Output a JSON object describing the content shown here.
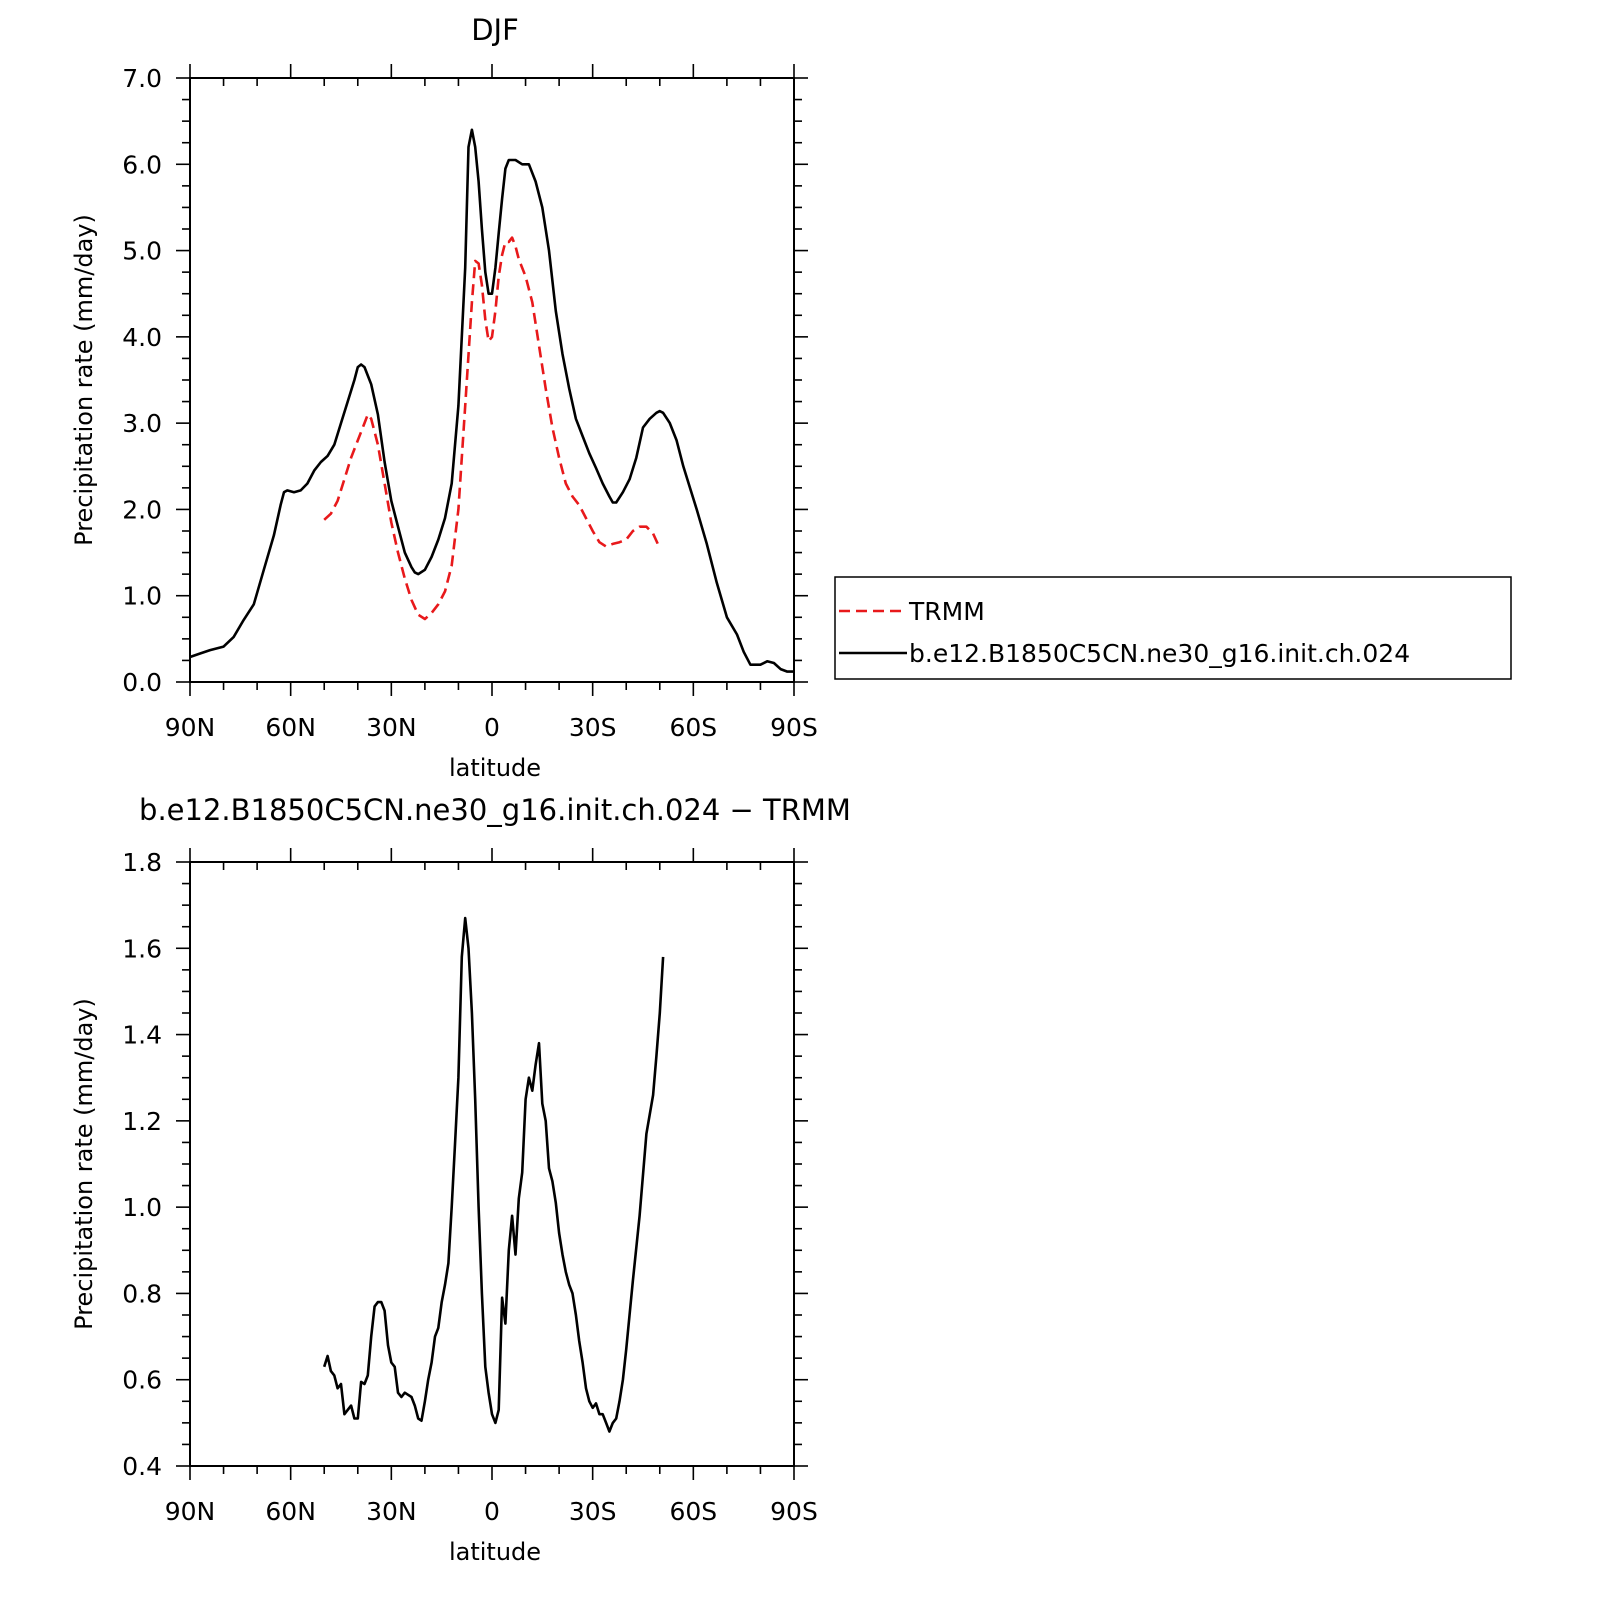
{
  "colors": {
    "trmm": "#e8191b",
    "model": "#000000",
    "axis": "#000000"
  },
  "chart_data": [
    {
      "type": "line",
      "title": "DJF",
      "xlabel": "latitude",
      "ylabel": "Precipitation rate (mm/day)",
      "xlim": [
        90,
        -90
      ],
      "ylim": [
        0,
        7
      ],
      "xticks": [
        {
          "v": 90,
          "label": "90N"
        },
        {
          "v": 60,
          "label": "60N"
        },
        {
          "v": 30,
          "label": "30N"
        },
        {
          "v": 0,
          "label": "0"
        },
        {
          "v": -30,
          "label": "30S"
        },
        {
          "v": -60,
          "label": "60S"
        },
        {
          "v": -90,
          "label": "90S"
        }
      ],
      "yticks": [
        {
          "v": 0,
          "label": "0.0"
        },
        {
          "v": 1,
          "label": "1.0"
        },
        {
          "v": 2,
          "label": "2.0"
        },
        {
          "v": 3,
          "label": "3.0"
        },
        {
          "v": 4,
          "label": "4.0"
        },
        {
          "v": 5,
          "label": "5.0"
        },
        {
          "v": 6,
          "label": "6.0"
        },
        {
          "v": 7,
          "label": "7.0"
        }
      ],
      "legend": {
        "position": "right",
        "entries": [
          "TRMM",
          "b.e12.B1850C5CN.ne30_g16.init.ch.024"
        ]
      },
      "series": [
        {
          "name": "TRMM",
          "style": "dashed",
          "points": [
            [
              50,
              1.88
            ],
            [
              48,
              1.95
            ],
            [
              46,
              2.1
            ],
            [
              44,
              2.35
            ],
            [
              42,
              2.6
            ],
            [
              40,
              2.8
            ],
            [
              38,
              3.0
            ],
            [
              37,
              3.1
            ],
            [
              36,
              3.05
            ],
            [
              34,
              2.75
            ],
            [
              32,
              2.3
            ],
            [
              30,
              1.85
            ],
            [
              28,
              1.5
            ],
            [
              26,
              1.2
            ],
            [
              24,
              0.95
            ],
            [
              22,
              0.78
            ],
            [
              20,
              0.73
            ],
            [
              18,
              0.8
            ],
            [
              16,
              0.9
            ],
            [
              14,
              1.05
            ],
            [
              12,
              1.35
            ],
            [
              10,
              2.0
            ],
            [
              8,
              3.2
            ],
            [
              6,
              4.4
            ],
            [
              5,
              4.88
            ],
            [
              4,
              4.85
            ],
            [
              3,
              4.6
            ],
            [
              2,
              4.2
            ],
            [
              1,
              3.95
            ],
            [
              0,
              4.0
            ],
            [
              -1,
              4.3
            ],
            [
              -2,
              4.7
            ],
            [
              -3,
              4.95
            ],
            [
              -4,
              5.1
            ],
            [
              -5,
              5.1
            ],
            [
              -6,
              5.15
            ],
            [
              -7,
              5.05
            ],
            [
              -8,
              4.9
            ],
            [
              -10,
              4.7
            ],
            [
              -12,
              4.4
            ],
            [
              -14,
              3.9
            ],
            [
              -16,
              3.4
            ],
            [
              -18,
              2.95
            ],
            [
              -20,
              2.6
            ],
            [
              -22,
              2.3
            ],
            [
              -24,
              2.15
            ],
            [
              -26,
              2.05
            ],
            [
              -28,
              1.9
            ],
            [
              -30,
              1.75
            ],
            [
              -32,
              1.62
            ],
            [
              -34,
              1.57
            ],
            [
              -36,
              1.6
            ],
            [
              -38,
              1.62
            ],
            [
              -40,
              1.65
            ],
            [
              -42,
              1.75
            ],
            [
              -44,
              1.8
            ],
            [
              -46,
              1.8
            ],
            [
              -48,
              1.72
            ],
            [
              -50,
              1.55
            ]
          ]
        },
        {
          "name": "b.e12.B1850C5CN.ne30_g16.init.ch.024",
          "style": "solid",
          "points": [
            [
              90,
              0.29
            ],
            [
              87,
              0.33
            ],
            [
              84,
              0.37
            ],
            [
              80,
              0.41
            ],
            [
              77,
              0.52
            ],
            [
              74,
              0.72
            ],
            [
              71,
              0.9
            ],
            [
              68,
              1.3
            ],
            [
              65,
              1.7
            ],
            [
              63,
              2.05
            ],
            [
              62,
              2.2
            ],
            [
              61,
              2.22
            ],
            [
              59,
              2.2
            ],
            [
              57,
              2.22
            ],
            [
              55,
              2.3
            ],
            [
              53,
              2.45
            ],
            [
              51,
              2.55
            ],
            [
              49,
              2.62
            ],
            [
              47,
              2.75
            ],
            [
              45,
              3.0
            ],
            [
              43,
              3.25
            ],
            [
              41,
              3.5
            ],
            [
              40,
              3.65
            ],
            [
              39,
              3.68
            ],
            [
              38,
              3.65
            ],
            [
              36,
              3.45
            ],
            [
              34,
              3.1
            ],
            [
              32,
              2.55
            ],
            [
              30,
              2.1
            ],
            [
              28,
              1.8
            ],
            [
              26,
              1.5
            ],
            [
              24,
              1.33
            ],
            [
              23,
              1.27
            ],
            [
              22,
              1.25
            ],
            [
              20,
              1.3
            ],
            [
              18,
              1.45
            ],
            [
              16,
              1.65
            ],
            [
              14,
              1.9
            ],
            [
              12,
              2.3
            ],
            [
              10,
              3.2
            ],
            [
              8,
              4.8
            ],
            [
              7,
              6.2
            ],
            [
              6,
              6.4
            ],
            [
              5,
              6.2
            ],
            [
              4,
              5.8
            ],
            [
              3,
              5.25
            ],
            [
              2,
              4.75
            ],
            [
              1,
              4.5
            ],
            [
              0,
              4.5
            ],
            [
              -1,
              4.8
            ],
            [
              -2,
              5.2
            ],
            [
              -3,
              5.6
            ],
            [
              -4,
              5.95
            ],
            [
              -5,
              6.05
            ],
            [
              -7,
              6.05
            ],
            [
              -9,
              6.0
            ],
            [
              -11,
              6.0
            ],
            [
              -13,
              5.8
            ],
            [
              -15,
              5.5
            ],
            [
              -17,
              5.0
            ],
            [
              -19,
              4.3
            ],
            [
              -21,
              3.8
            ],
            [
              -23,
              3.4
            ],
            [
              -25,
              3.05
            ],
            [
              -27,
              2.85
            ],
            [
              -29,
              2.65
            ],
            [
              -31,
              2.48
            ],
            [
              -33,
              2.3
            ],
            [
              -35,
              2.15
            ],
            [
              -36,
              2.08
            ],
            [
              -37,
              2.08
            ],
            [
              -39,
              2.2
            ],
            [
              -41,
              2.35
            ],
            [
              -43,
              2.6
            ],
            [
              -45,
              2.95
            ],
            [
              -47,
              3.05
            ],
            [
              -49,
              3.12
            ],
            [
              -50,
              3.14
            ],
            [
              -51,
              3.12
            ],
            [
              -53,
              3.0
            ],
            [
              -55,
              2.8
            ],
            [
              -57,
              2.5
            ],
            [
              -59,
              2.25
            ],
            [
              -61,
              2.0
            ],
            [
              -64,
              1.6
            ],
            [
              -67,
              1.15
            ],
            [
              -70,
              0.75
            ],
            [
              -73,
              0.55
            ],
            [
              -75,
              0.35
            ],
            [
              -77,
              0.2
            ],
            [
              -80,
              0.2
            ],
            [
              -82,
              0.24
            ],
            [
              -84,
              0.22
            ],
            [
              -86,
              0.15
            ],
            [
              -88,
              0.12
            ],
            [
              -90,
              0.12
            ]
          ]
        }
      ]
    },
    {
      "type": "line",
      "title": "b.e12.B1850C5CN.ne30_g16.init.ch.024 − TRMM",
      "xlabel": "latitude",
      "ylabel": "Precipitation rate (mm/day)",
      "xlim": [
        90,
        -90
      ],
      "ylim": [
        0.4,
        1.8
      ],
      "xticks": [
        {
          "v": 90,
          "label": "90N"
        },
        {
          "v": 60,
          "label": "60N"
        },
        {
          "v": 30,
          "label": "30N"
        },
        {
          "v": 0,
          "label": "0"
        },
        {
          "v": -30,
          "label": "30S"
        },
        {
          "v": -60,
          "label": "60S"
        },
        {
          "v": -90,
          "label": "90S"
        }
      ],
      "yticks": [
        {
          "v": 0.4,
          "label": "0.4"
        },
        {
          "v": 0.6,
          "label": "0.6"
        },
        {
          "v": 0.8,
          "label": "0.8"
        },
        {
          "v": 1.0,
          "label": "1.0"
        },
        {
          "v": 1.2,
          "label": "1.2"
        },
        {
          "v": 1.4,
          "label": "1.4"
        },
        {
          "v": 1.6,
          "label": "1.6"
        },
        {
          "v": 1.8,
          "label": "1.8"
        }
      ],
      "series": [
        {
          "style": "solid",
          "points": [
            [
              50,
              0.63
            ],
            [
              49,
              0.655
            ],
            [
              48,
              0.62
            ],
            [
              47,
              0.61
            ],
            [
              46,
              0.58
            ],
            [
              45,
              0.59
            ],
            [
              44,
              0.52
            ],
            [
              43,
              0.53
            ],
            [
              42,
              0.54
            ],
            [
              41,
              0.51
            ],
            [
              40,
              0.51
            ],
            [
              39,
              0.595
            ],
            [
              38,
              0.59
            ],
            [
              37,
              0.61
            ],
            [
              36,
              0.7
            ],
            [
              35,
              0.77
            ],
            [
              34,
              0.78
            ],
            [
              33,
              0.78
            ],
            [
              32,
              0.76
            ],
            [
              31,
              0.68
            ],
            [
              30,
              0.64
            ],
            [
              29,
              0.63
            ],
            [
              28,
              0.57
            ],
            [
              27,
              0.56
            ],
            [
              26,
              0.57
            ],
            [
              25,
              0.565
            ],
            [
              24,
              0.56
            ],
            [
              23,
              0.54
            ],
            [
              22,
              0.51
            ],
            [
              21,
              0.505
            ],
            [
              20,
              0.55
            ],
            [
              19,
              0.6
            ],
            [
              18,
              0.64
            ],
            [
              17,
              0.7
            ],
            [
              16,
              0.72
            ],
            [
              15,
              0.78
            ],
            [
              14,
              0.82
            ],
            [
              13,
              0.87
            ],
            [
              12,
              1.0
            ],
            [
              11,
              1.15
            ],
            [
              10,
              1.3
            ],
            [
              9,
              1.58
            ],
            [
              8,
              1.67
            ],
            [
              7,
              1.6
            ],
            [
              6,
              1.45
            ],
            [
              5,
              1.25
            ],
            [
              4,
              1.0
            ],
            [
              3,
              0.8
            ],
            [
              2,
              0.63
            ],
            [
              1,
              0.57
            ],
            [
              0,
              0.52
            ],
            [
              -1,
              0.5
            ],
            [
              -2,
              0.53
            ],
            [
              -3,
              0.79
            ],
            [
              -4,
              0.73
            ],
            [
              -5,
              0.9
            ],
            [
              -6,
              0.98
            ],
            [
              -7,
              0.89
            ],
            [
              -8,
              1.02
            ],
            [
              -9,
              1.08
            ],
            [
              -10,
              1.25
            ],
            [
              -11,
              1.3
            ],
            [
              -12,
              1.27
            ],
            [
              -13,
              1.33
            ],
            [
              -14,
              1.38
            ],
            [
              -15,
              1.24
            ],
            [
              -16,
              1.2
            ],
            [
              -17,
              1.09
            ],
            [
              -18,
              1.06
            ],
            [
              -19,
              1.01
            ],
            [
              -20,
              0.94
            ],
            [
              -21,
              0.89
            ],
            [
              -22,
              0.85
            ],
            [
              -23,
              0.82
            ],
            [
              -24,
              0.8
            ],
            [
              -25,
              0.75
            ],
            [
              -26,
              0.69
            ],
            [
              -27,
              0.64
            ],
            [
              -28,
              0.58
            ],
            [
              -29,
              0.55
            ],
            [
              -30,
              0.535
            ],
            [
              -31,
              0.545
            ],
            [
              -32,
              0.52
            ],
            [
              -33,
              0.52
            ],
            [
              -34,
              0.5
            ],
            [
              -35,
              0.48
            ],
            [
              -36,
              0.5
            ],
            [
              -37,
              0.51
            ],
            [
              -38,
              0.55
            ],
            [
              -39,
              0.6
            ],
            [
              -40,
              0.67
            ],
            [
              -42,
              0.83
            ],
            [
              -44,
              0.98
            ],
            [
              -46,
              1.17
            ],
            [
              -48,
              1.26
            ],
            [
              -49,
              1.35
            ],
            [
              -50,
              1.45
            ],
            [
              -51,
              1.58
            ]
          ]
        }
      ]
    }
  ]
}
